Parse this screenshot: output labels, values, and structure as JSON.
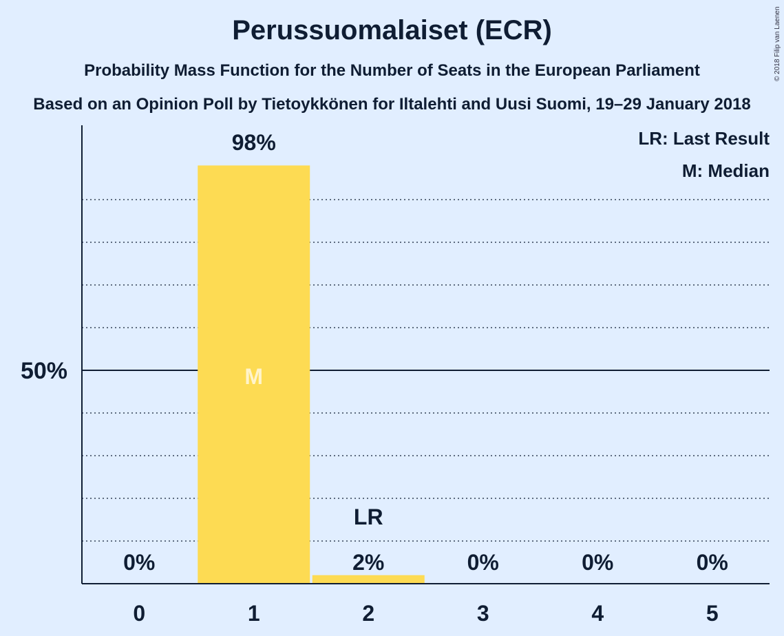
{
  "chart_data": {
    "type": "bar",
    "title": "Perussuomalaiset (ECR)",
    "subtitle": "Probability Mass Function for the Number of Seats in the European Parliament",
    "subtitle2": "Based on an Opinion Poll by Tietoykkönen for Iltalehti and Uusi Suomi, 19–29 January 2018",
    "copyright": "© 2018 Filip van Laenen",
    "categories": [
      "0",
      "1",
      "2",
      "3",
      "4",
      "5"
    ],
    "values": [
      0,
      98,
      2,
      0,
      0,
      0
    ],
    "value_labels": [
      "0%",
      "98%",
      "2%",
      "0%",
      "0%",
      "0%"
    ],
    "ylim": [
      0,
      100
    ],
    "y_tick_label": "50%",
    "y_tick_value": 50,
    "grid": true,
    "median_index": 1,
    "median_marker": "M",
    "last_result_index": 2,
    "last_result_marker": "LR",
    "legend": [
      "LR: Last Result",
      "M: Median"
    ],
    "legend_position": "top-right",
    "bar_color": "#FDDB53"
  }
}
